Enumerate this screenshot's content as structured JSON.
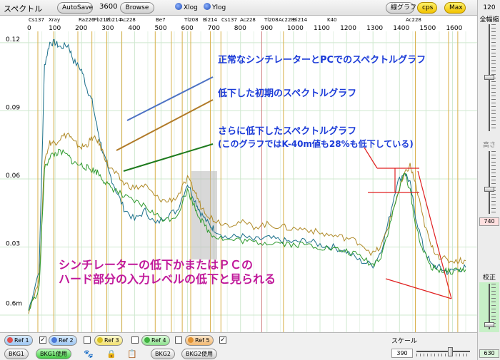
{
  "topbar": {
    "title": "スペクトル",
    "autosave_label": "AutoSave",
    "autosave_value": "3600",
    "browse_label": "Browse",
    "xlog_label": "Xlog",
    "ylog_label": "Ylog",
    "line_graph_label": "線グラフ",
    "cps_label": "cps",
    "max_label": "Max",
    "top_value": "120"
  },
  "right_panel": {
    "full_width_label": "全幅縮",
    "height_label": "高さ",
    "height_value": "740",
    "calibrate_label": "校正",
    "calibrate_value": "630"
  },
  "bottom": {
    "refs": [
      {
        "label": "Ref 1",
        "checked": true,
        "color": "#e05050"
      },
      {
        "label": "Ref 2",
        "checked": false,
        "color": "#4a78d8"
      },
      {
        "label": "Ref 3",
        "checked": false,
        "color": "#d8c020"
      },
      {
        "label": "Ref 4",
        "checked": false,
        "color": "#40b040"
      },
      {
        "label": "Ref 5",
        "checked": true,
        "color": "#e09030"
      }
    ],
    "bkg1_label": "BKG1",
    "bkg1_use_label": "BKG1使用",
    "bkg2_label": "BKG2",
    "bkg2_use_label": "BKG2使用",
    "scale_label": "スケール",
    "scale_value": "390"
  },
  "chart_data": {
    "type": "line",
    "x_tick_labels": [
      "0",
      "100",
      "200",
      "300",
      "400",
      "500",
      "600",
      "700",
      "800",
      "900",
      "1000",
      "1100",
      "1200",
      "1300",
      "1400",
      "1500",
      "1600"
    ],
    "y_tick_labels": [
      "0.12",
      "0.09",
      "0.06",
      "0.03",
      "0.6m"
    ],
    "ylim": [
      0,
      0.125
    ],
    "xlim": [
      0,
      1650
    ],
    "peak_labels": [
      "Cs137",
      "Xray",
      "Ra226",
      "Pb212",
      "Pb214",
      "Ac228",
      "Be7",
      "Tl208",
      "Bi214",
      "Cs137",
      "Ac228",
      "Tl208",
      "Ac228",
      "Bi214",
      "K40",
      "Ac228"
    ],
    "series": [
      {
        "color": "#1a6f8a",
        "x": [
          0,
          40,
          60,
          80,
          100,
          120,
          150,
          170,
          200,
          220,
          240,
          260,
          280,
          300,
          330,
          360,
          400,
          440,
          480,
          520,
          560,
          600,
          630,
          650,
          680,
          700,
          750,
          800,
          850,
          900,
          950,
          1000,
          1050,
          1100,
          1150,
          1200,
          1250,
          1300,
          1330,
          1360,
          1390,
          1420,
          1440,
          1460,
          1490,
          1520,
          1550,
          1580,
          1620,
          1650
        ],
        "y": [
          0.002,
          0.02,
          0.11,
          0.12,
          0.12,
          0.118,
          0.119,
          0.112,
          0.108,
          0.1,
          0.094,
          0.082,
          0.072,
          0.064,
          0.055,
          0.047,
          0.042,
          0.046,
          0.04,
          0.044,
          0.046,
          0.058,
          0.05,
          0.045,
          0.04,
          0.038,
          0.034,
          0.035,
          0.033,
          0.034,
          0.033,
          0.032,
          0.033,
          0.031,
          0.03,
          0.028,
          0.024,
          0.022,
          0.028,
          0.042,
          0.058,
          0.063,
          0.058,
          0.044,
          0.03,
          0.022,
          0.021,
          0.019,
          0.02,
          0.021
        ]
      },
      {
        "color": "#b08a28",
        "x": [
          0,
          40,
          60,
          80,
          100,
          120,
          150,
          170,
          200,
          220,
          240,
          260,
          280,
          300,
          330,
          360,
          400,
          440,
          480,
          520,
          560,
          600,
          630,
          650,
          680,
          700,
          750,
          800,
          850,
          900,
          950,
          1000,
          1050,
          1100,
          1150,
          1200,
          1250,
          1300,
          1330,
          1360,
          1390,
          1420,
          1440,
          1460,
          1490,
          1520,
          1550,
          1580,
          1620,
          1650
        ],
        "y": [
          0.002,
          0.015,
          0.068,
          0.076,
          0.076,
          0.078,
          0.08,
          0.076,
          0.074,
          0.075,
          0.078,
          0.077,
          0.072,
          0.066,
          0.062,
          0.058,
          0.056,
          0.057,
          0.052,
          0.05,
          0.052,
          0.06,
          0.054,
          0.048,
          0.044,
          0.042,
          0.04,
          0.041,
          0.039,
          0.04,
          0.039,
          0.038,
          0.038,
          0.036,
          0.035,
          0.034,
          0.032,
          0.027,
          0.03,
          0.04,
          0.052,
          0.062,
          0.066,
          0.058,
          0.042,
          0.03,
          0.026,
          0.024,
          0.024,
          0.024
        ]
      },
      {
        "color": "#2f9a2f",
        "x": [
          0,
          40,
          60,
          80,
          100,
          120,
          150,
          170,
          200,
          220,
          240,
          260,
          280,
          300,
          330,
          360,
          400,
          440,
          480,
          520,
          560,
          600,
          630,
          650,
          680,
          700,
          750,
          800,
          850,
          900,
          950,
          1000,
          1050,
          1100,
          1150,
          1200,
          1250,
          1300,
          1330,
          1360,
          1390,
          1420,
          1440,
          1460,
          1490,
          1520,
          1550,
          1580,
          1620,
          1650
        ],
        "y": [
          0.002,
          0.012,
          0.064,
          0.07,
          0.071,
          0.072,
          0.07,
          0.067,
          0.066,
          0.065,
          0.064,
          0.063,
          0.06,
          0.057,
          0.055,
          0.052,
          0.05,
          0.048,
          0.044,
          0.042,
          0.044,
          0.055,
          0.047,
          0.042,
          0.037,
          0.035,
          0.033,
          0.033,
          0.032,
          0.032,
          0.032,
          0.031,
          0.031,
          0.03,
          0.029,
          0.028,
          0.026,
          0.022,
          0.026,
          0.038,
          0.052,
          0.063,
          0.055,
          0.04,
          0.028,
          0.021,
          0.02,
          0.019,
          0.02,
          0.02
        ]
      }
    ],
    "annotations": [
      {
        "text": "正常なシンチレーターとPCでのスペクトルグラフ",
        "color": "#1a3ad8"
      },
      {
        "text": "低下した初期のスペクトルグラフ",
        "color": "#1a3ad8"
      },
      {
        "text": "さらに低下したスペクトルグラフ",
        "color": "#1a3ad8"
      },
      {
        "text": "(このグラフではK-40m値も28%も低下している)",
        "color": "#1a3ad8"
      },
      {
        "text": "シンチレーターの低下かまたはＰＣの",
        "color": "#c0189a"
      },
      {
        "text": "ハード部分の入力レベルの低下と見られる",
        "color": "#c0189a"
      }
    ]
  }
}
